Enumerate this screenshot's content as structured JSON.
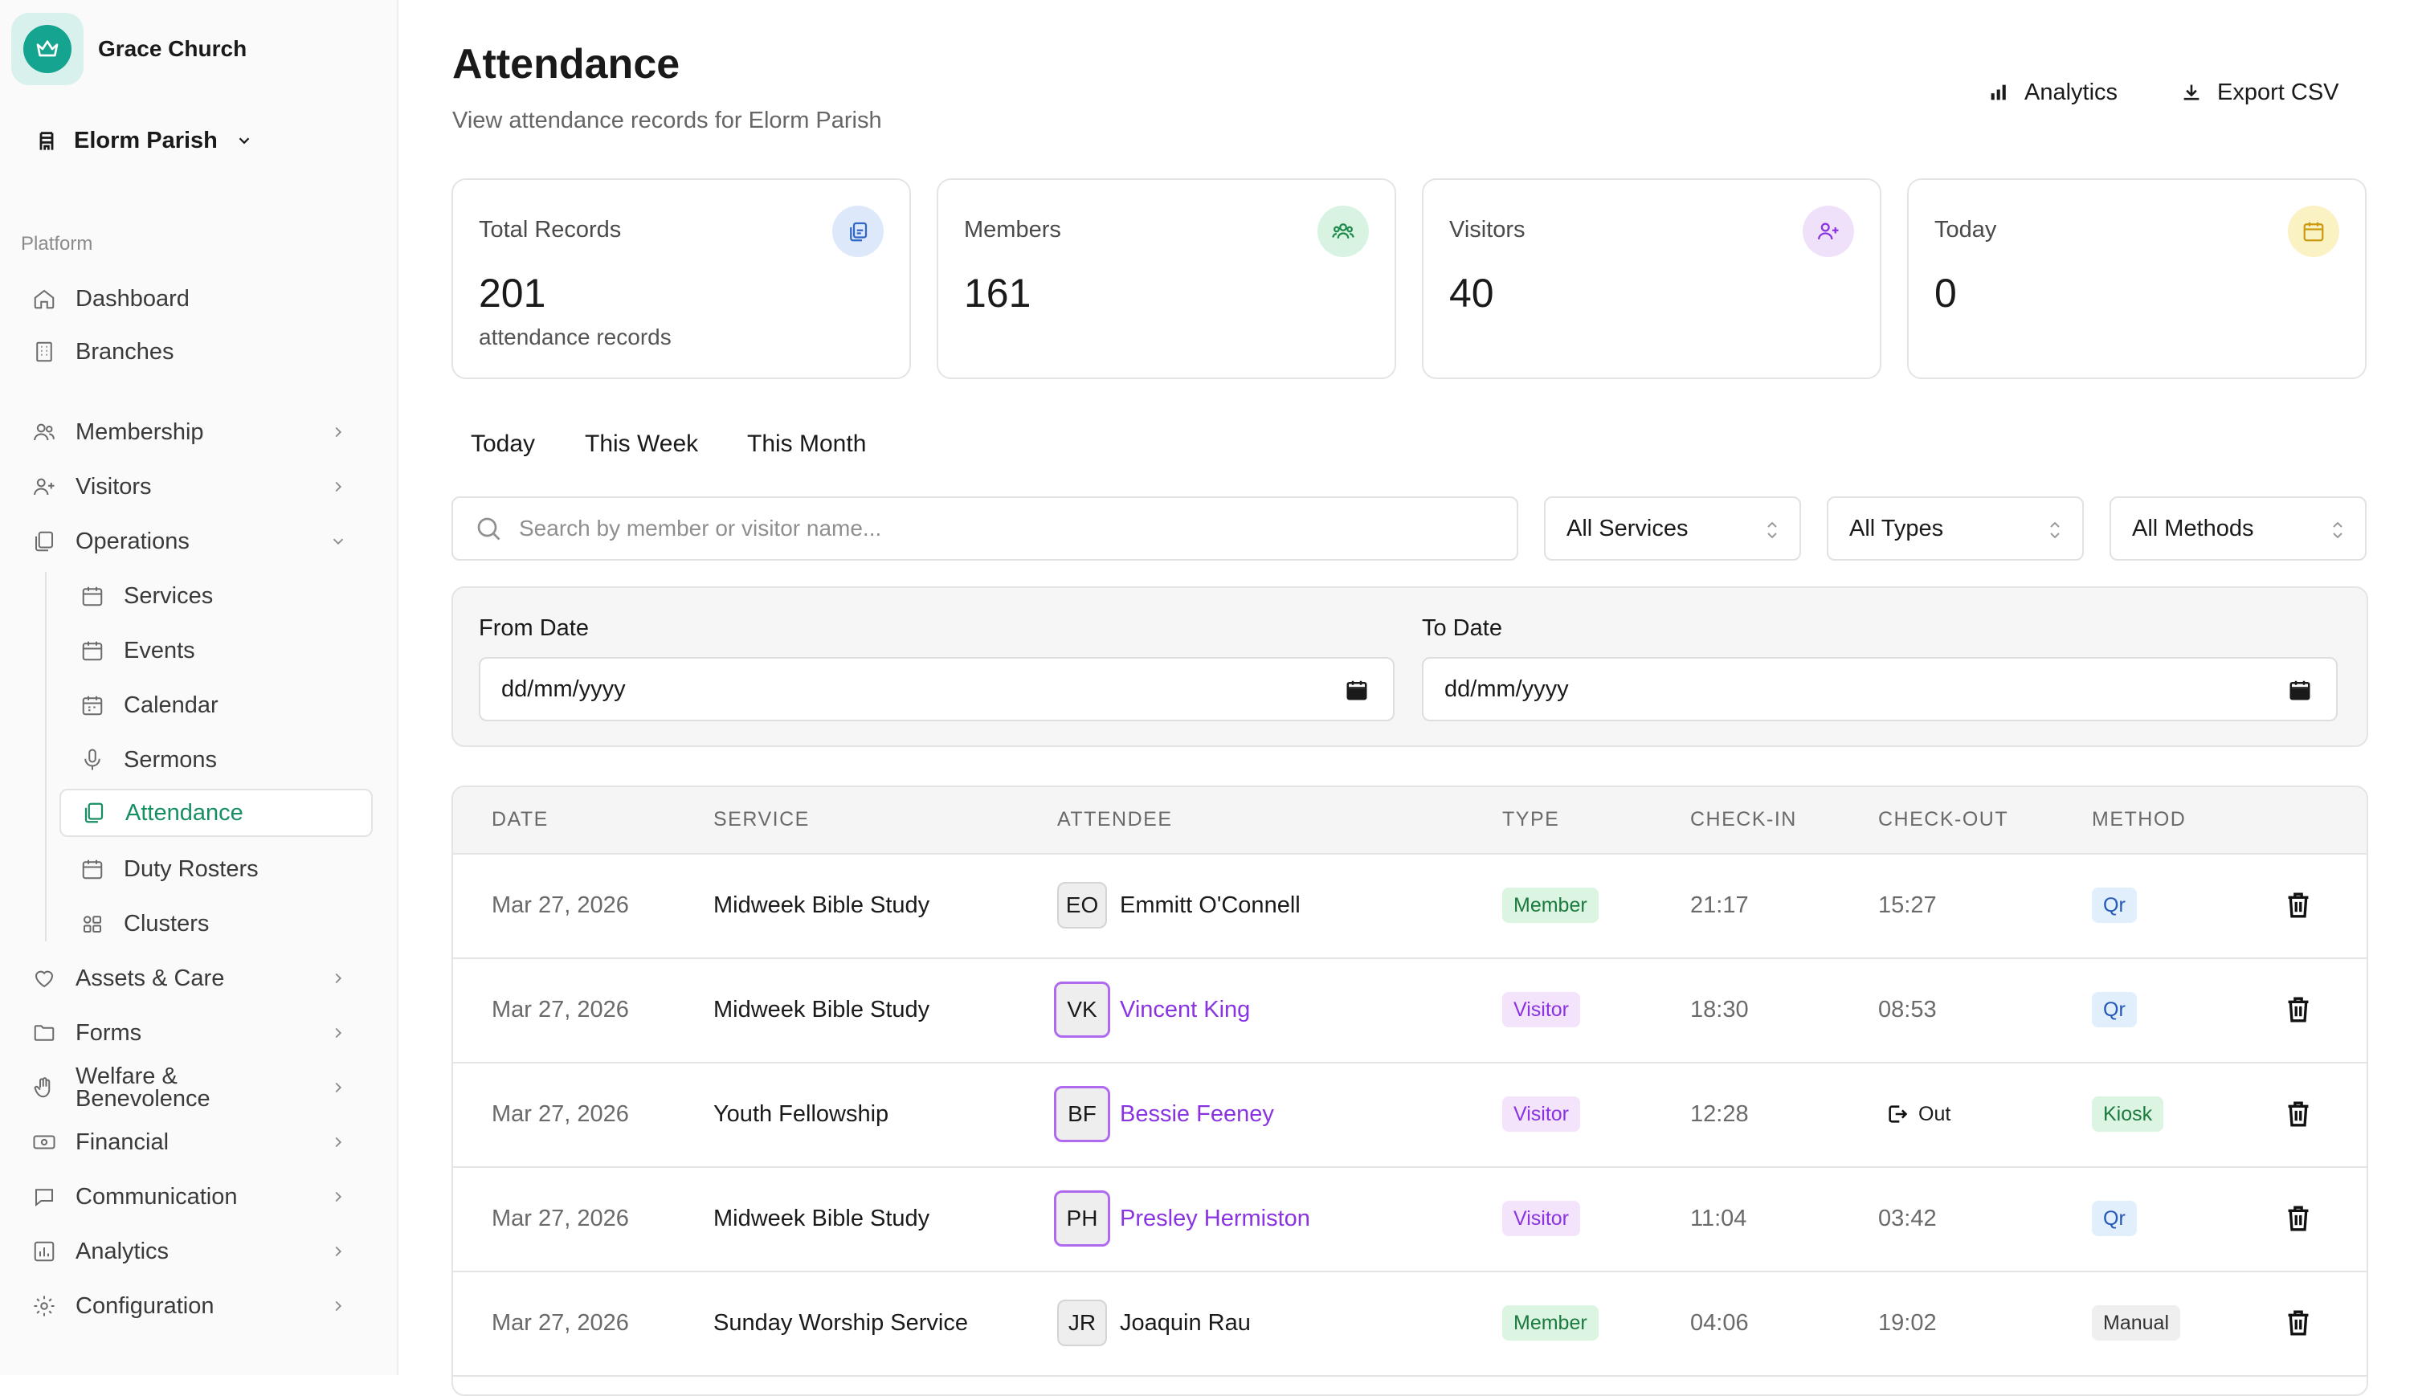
{
  "sidebar": {
    "brand_name": "Grace Church",
    "parish_name": "Elorm Parish",
    "section_label": "Platform",
    "items": [
      {
        "label": "Dashboard"
      },
      {
        "label": "Branches"
      },
      {
        "label": "Membership"
      },
      {
        "label": "Visitors"
      },
      {
        "label": "Operations"
      },
      {
        "label": "Services"
      },
      {
        "label": "Events"
      },
      {
        "label": "Calendar"
      },
      {
        "label": "Sermons"
      },
      {
        "label": "Attendance"
      },
      {
        "label": "Duty Rosters"
      },
      {
        "label": "Clusters"
      },
      {
        "label": "Assets & Care"
      },
      {
        "label": "Forms"
      },
      {
        "label": "Welfare & Benevolence"
      },
      {
        "label": "Financial"
      },
      {
        "label": "Communication"
      },
      {
        "label": "Analytics"
      },
      {
        "label": "Configuration"
      }
    ]
  },
  "header": {
    "title": "Attendance",
    "subtitle": "View attendance records for Elorm Parish",
    "analytics_label": "Analytics",
    "export_label": "Export CSV"
  },
  "stats": [
    {
      "label": "Total Records",
      "value": "201",
      "desc": "attendance records"
    },
    {
      "label": "Members",
      "value": "161"
    },
    {
      "label": "Visitors",
      "value": "40"
    },
    {
      "label": "Today",
      "value": "0"
    }
  ],
  "ranges": [
    "Today",
    "This Week",
    "This Month"
  ],
  "filters": {
    "search_placeholder": "Search by member or visitor name...",
    "services": "All Services",
    "types": "All Types",
    "methods": "All Methods",
    "from_label": "From Date",
    "to_label": "To Date",
    "date_placeholder": "dd/mm/yyyy"
  },
  "table": {
    "columns": [
      "DATE",
      "SERVICE",
      "ATTENDEE",
      "TYPE",
      "CHECK-IN",
      "CHECK-OUT",
      "METHOD"
    ],
    "rows": [
      {
        "date": "Mar 27, 2026",
        "service": "Midweek Bible Study",
        "initials": "EO",
        "name": "Emmitt O'Connell",
        "type": "Member",
        "checkin": "21:17",
        "checkout": "15:27",
        "method": "Qr"
      },
      {
        "date": "Mar 27, 2026",
        "service": "Midweek Bible Study",
        "initials": "VK",
        "name": "Vincent King",
        "type": "Visitor",
        "checkin": "18:30",
        "checkout": "08:53",
        "method": "Qr"
      },
      {
        "date": "Mar 27, 2026",
        "service": "Youth Fellowship",
        "initials": "BF",
        "name": "Bessie Feeney",
        "type": "Visitor",
        "checkin": "12:28",
        "checkout": "Out",
        "method": "Kiosk"
      },
      {
        "date": "Mar 27, 2026",
        "service": "Midweek Bible Study",
        "initials": "PH",
        "name": "Presley Hermiston",
        "type": "Visitor",
        "checkin": "11:04",
        "checkout": "03:42",
        "method": "Qr"
      },
      {
        "date": "Mar 27, 2026",
        "service": "Sunday Worship Service",
        "initials": "JR",
        "name": "Joaquin Rau",
        "type": "Member",
        "checkin": "04:06",
        "checkout": "19:02",
        "method": "Manual"
      }
    ]
  },
  "colors": {
    "accent": "#178f63",
    "brand": "#14a48f",
    "visitor": "#8a33e0"
  }
}
